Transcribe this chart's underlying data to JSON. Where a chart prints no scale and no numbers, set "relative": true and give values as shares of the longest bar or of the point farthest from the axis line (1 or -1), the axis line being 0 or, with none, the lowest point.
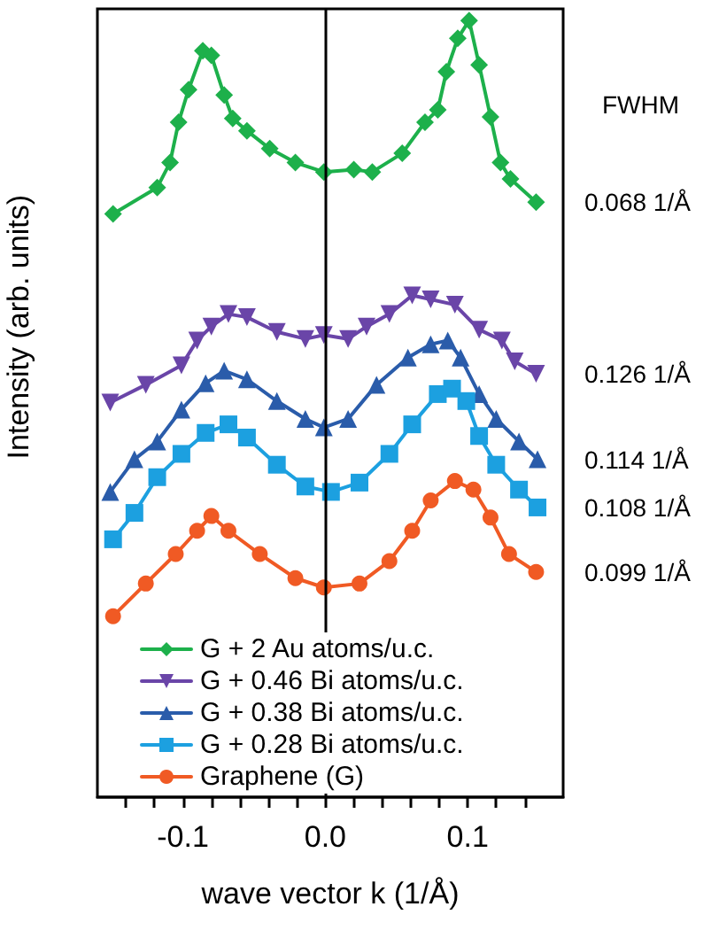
{
  "chart_data": {
    "type": "line",
    "relative": true,
    "xlabel": "wave vector k (1/Å)",
    "ylabel": "Intensity (arb. units)",
    "xlim": [
      -0.16,
      0.167
    ],
    "xticks": [
      {
        "value": -0.14,
        "label": null
      },
      {
        "value": -0.12,
        "label": null
      },
      -0.1,
      {
        "value": -0.08,
        "label": null
      },
      {
        "value": -0.06,
        "label": null
      },
      {
        "value": -0.04,
        "label": null
      },
      {
        "value": -0.02,
        "label": null
      },
      {
        "value": 0,
        "label": "0.0"
      },
      {
        "value": 0.02,
        "label": null
      },
      {
        "value": 0.04,
        "label": null
      },
      {
        "value": 0.06,
        "label": null
      },
      {
        "value": 0.08,
        "label": null
      },
      0.1,
      {
        "value": 0.12,
        "label": null
      },
      {
        "value": 0.14,
        "label": null
      }
    ],
    "grid": false,
    "legend": "bottom left",
    "ref_lines": [
      {
        "axis": "x",
        "value": 0,
        "color": "#000000"
      }
    ],
    "annotations": [
      "FWHM",
      "0.068 1/Å",
      "0.126 1/Å",
      "0.114 1/Å",
      "0.108 1/Å",
      "0.099 1/Å"
    ],
    "series": [
      {
        "name": "G + 2 Au atoms/u.c.",
        "color": "#1db04b",
        "marker": "diamond",
        "x": [
          -0.149,
          -0.118,
          -0.109,
          -0.103,
          -0.096,
          -0.086,
          -0.08,
          -0.071,
          -0.065,
          -0.055,
          -0.039,
          -0.021,
          -0.001,
          0.02,
          0.033,
          0.054,
          0.07,
          0.079,
          0.085,
          0.093,
          0.101,
          0.108,
          0.116,
          0.123,
          0.13,
          0.148
        ],
        "values": [
          0.751,
          0.785,
          0.817,
          0.869,
          0.911,
          0.961,
          0.955,
          0.904,
          0.874,
          0.858,
          0.835,
          0.817,
          0.805,
          0.808,
          0.805,
          0.829,
          0.869,
          0.885,
          0.934,
          0.977,
          1,
          0.943,
          0.876,
          0.817,
          0.796,
          0.766
        ]
      },
      {
        "name": "G + 0.46 Bi atoms/u.c.",
        "color": "#6a45a8",
        "marker": "triangle-down",
        "x": [
          -0.151,
          -0.126,
          -0.101,
          -0.09,
          -0.08,
          -0.068,
          -0.055,
          -0.034,
          -0.014,
          -0.001,
          0.016,
          0.029,
          0.045,
          0.061,
          0.074,
          0.091,
          0.108,
          0.124,
          0.133,
          0.148
        ],
        "values": [
          0.508,
          0.531,
          0.556,
          0.588,
          0.606,
          0.622,
          0.618,
          0.599,
          0.59,
          0.595,
          0.59,
          0.606,
          0.622,
          0.646,
          0.641,
          0.634,
          0.602,
          0.588,
          0.561,
          0.545
        ]
      },
      {
        "name": "G + 0.38 Bi atoms/u.c.",
        "color": "#2a5caa",
        "marker": "triangle",
        "x": [
          -0.151,
          -0.134,
          -0.118,
          -0.101,
          -0.084,
          -0.071,
          -0.055,
          -0.034,
          -0.014,
          -0.001,
          0.016,
          0.036,
          0.058,
          0.074,
          0.086,
          0.095,
          0.108,
          0.12,
          0.136,
          0.149
        ],
        "values": [
          0.393,
          0.435,
          0.458,
          0.499,
          0.533,
          0.549,
          0.538,
          0.51,
          0.487,
          0.476,
          0.487,
          0.531,
          0.566,
          0.583,
          0.588,
          0.566,
          0.519,
          0.487,
          0.458,
          0.435
        ]
      },
      {
        "name": "G + 0.28 Bi atoms/u.c.",
        "color": "#1ca0e0",
        "marker": "square",
        "x": [
          -0.149,
          -0.134,
          -0.118,
          -0.101,
          -0.084,
          -0.068,
          -0.055,
          -0.034,
          -0.014,
          0.004,
          0.024,
          0.045,
          0.061,
          0.079,
          0.089,
          0.099,
          0.108,
          0.12,
          0.136,
          0.149
        ],
        "values": [
          0.332,
          0.366,
          0.412,
          0.442,
          0.469,
          0.48,
          0.463,
          0.428,
          0.4,
          0.393,
          0.405,
          0.442,
          0.48,
          0.519,
          0.526,
          0.51,
          0.465,
          0.428,
          0.396,
          0.373
        ]
      },
      {
        "name": "Graphene (G)",
        "color": "#f05a24",
        "marker": "circle",
        "x": [
          -0.149,
          -0.126,
          -0.105,
          -0.09,
          -0.08,
          -0.068,
          -0.046,
          -0.021,
          -0.001,
          0.024,
          0.045,
          0.061,
          0.074,
          0.091,
          0.104,
          0.116,
          0.129,
          0.148
        ],
        "values": [
          0.233,
          0.275,
          0.313,
          0.343,
          0.362,
          0.343,
          0.313,
          0.282,
          0.27,
          0.275,
          0.304,
          0.343,
          0.382,
          0.407,
          0.396,
          0.36,
          0.313,
          0.29
        ]
      }
    ]
  }
}
